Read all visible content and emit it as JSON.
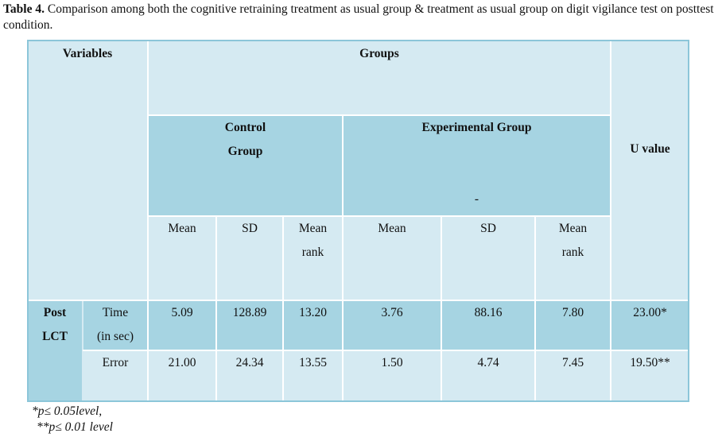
{
  "caption": {
    "label": "Table 4.",
    "text": " Comparison among both the cognitive retraining treatment as usual group & treatment as usual group on digit vigilance test on posttest condition."
  },
  "header": {
    "variables": "Variables",
    "groups": "Groups",
    "control_line1": "Control",
    "control_line2": "Group",
    "experimental": "Experimental Group",
    "experimental_dash": "-",
    "u_value": "U value",
    "mean": "Mean",
    "sd": "SD",
    "mean_rank_line1": "Mean",
    "mean_rank_line2": "rank"
  },
  "rows": {
    "post_line1": "Post",
    "post_line2": "LCT",
    "time": {
      "label_line1": "Time",
      "label_line2": "(in sec)",
      "control_mean": "5.09",
      "control_sd": "128.89",
      "control_rank": "13.20",
      "exp_mean": "3.76",
      "exp_sd": "88.16",
      "exp_rank": "7.80",
      "u": "23.00*"
    },
    "error": {
      "label": "Error",
      "control_mean": "21.00",
      "control_sd": "24.34",
      "control_rank": "13.55",
      "exp_mean": "1.50",
      "exp_sd": "4.74",
      "exp_rank": "7.45",
      "u": "19.50**"
    }
  },
  "notes": {
    "note1": "*p≤ 0.05level,",
    "note2": "**p≤ 0.01 level"
  }
}
